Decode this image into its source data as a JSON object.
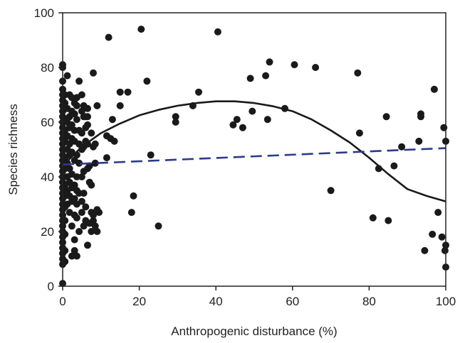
{
  "chart_data": {
    "type": "scatter",
    "title": "",
    "xlabel": "Anthropogenic disturbance (%)",
    "ylabel": "Species richness",
    "xlim": [
      0,
      100
    ],
    "ylim": [
      0,
      100
    ],
    "xticks": [
      0,
      20,
      40,
      60,
      80,
      100
    ],
    "yticks": [
      0,
      20,
      40,
      60,
      80,
      100
    ],
    "grid": false,
    "point_color": "#1a1a1a",
    "points": [
      [
        0,
        1
      ],
      [
        0,
        8
      ],
      [
        0,
        10
      ],
      [
        0,
        12
      ],
      [
        0,
        14
      ],
      [
        0,
        16
      ],
      [
        0,
        18
      ],
      [
        0,
        20
      ],
      [
        0,
        22
      ],
      [
        0,
        24
      ],
      [
        0,
        26
      ],
      [
        0,
        28
      ],
      [
        0,
        30
      ],
      [
        0,
        32
      ],
      [
        0,
        34
      ],
      [
        0,
        36
      ],
      [
        0,
        38
      ],
      [
        0,
        40
      ],
      [
        0,
        42
      ],
      [
        0,
        44
      ],
      [
        0,
        46
      ],
      [
        0,
        48
      ],
      [
        0,
        50
      ],
      [
        0,
        52
      ],
      [
        0,
        54
      ],
      [
        0,
        56
      ],
      [
        0,
        58
      ],
      [
        0,
        60
      ],
      [
        0,
        62
      ],
      [
        0,
        64
      ],
      [
        0,
        66
      ],
      [
        0,
        68
      ],
      [
        0,
        70
      ],
      [
        0,
        72
      ],
      [
        0,
        75
      ],
      [
        0,
        80
      ],
      [
        0,
        81
      ],
      [
        0.6,
        9
      ],
      [
        0.6,
        13
      ],
      [
        0.6,
        19
      ],
      [
        0.6,
        24
      ],
      [
        0.6,
        29
      ],
      [
        0.6,
        33
      ],
      [
        0.6,
        37
      ],
      [
        0.6,
        43
      ],
      [
        0.6,
        47
      ],
      [
        0.6,
        53
      ],
      [
        0.6,
        57
      ],
      [
        0.6,
        61
      ],
      [
        0.6,
        67
      ],
      [
        0.6,
        70
      ],
      [
        1.2,
        30
      ],
      [
        1.2,
        35
      ],
      [
        1.2,
        40
      ],
      [
        1.2,
        45
      ],
      [
        1.2,
        50
      ],
      [
        1.2,
        55
      ],
      [
        1.2,
        60
      ],
      [
        1.2,
        65
      ],
      [
        1.2,
        77
      ],
      [
        1.8,
        27
      ],
      [
        1.8,
        33
      ],
      [
        1.8,
        38
      ],
      [
        1.8,
        43
      ],
      [
        1.8,
        48
      ],
      [
        1.8,
        52
      ],
      [
        1.8,
        58
      ],
      [
        1.8,
        62
      ],
      [
        1.8,
        70
      ],
      [
        2.4,
        11
      ],
      [
        2.4,
        22
      ],
      [
        2.4,
        31
      ],
      [
        2.4,
        36
      ],
      [
        2.4,
        41
      ],
      [
        2.4,
        49
      ],
      [
        2.4,
        54
      ],
      [
        2.4,
        59
      ],
      [
        2.4,
        64
      ],
      [
        2.4,
        69
      ],
      [
        3.1,
        13
      ],
      [
        3.1,
        17
      ],
      [
        3.1,
        26
      ],
      [
        3.1,
        32
      ],
      [
        3.1,
        37
      ],
      [
        3.1,
        46
      ],
      [
        3.1,
        53
      ],
      [
        3.1,
        57
      ],
      [
        3.1,
        63
      ],
      [
        3.1,
        67
      ],
      [
        3.7,
        11
      ],
      [
        3.7,
        25
      ],
      [
        3.7,
        30
      ],
      [
        3.7,
        35
      ],
      [
        3.7,
        40
      ],
      [
        3.7,
        48
      ],
      [
        3.7,
        61
      ],
      [
        3.7,
        66
      ],
      [
        3.7,
        69
      ],
      [
        4.3,
        20
      ],
      [
        4.3,
        34
      ],
      [
        4.3,
        45
      ],
      [
        4.3,
        52
      ],
      [
        4.3,
        57
      ],
      [
        4.3,
        75
      ],
      [
        5,
        27
      ],
      [
        5,
        31
      ],
      [
        5,
        40
      ],
      [
        5,
        50
      ],
      [
        5,
        56
      ],
      [
        5,
        64
      ],
      [
        5,
        70
      ],
      [
        5.5,
        22
      ],
      [
        5.5,
        34
      ],
      [
        5.5,
        42
      ],
      [
        5.5,
        51
      ],
      [
        5.5,
        62
      ],
      [
        5.5,
        66
      ],
      [
        6,
        24
      ],
      [
        6,
        29
      ],
      [
        6,
        53
      ],
      [
        6,
        58
      ],
      [
        6,
        62
      ],
      [
        6.5,
        15
      ],
      [
        6.5,
        43
      ],
      [
        6.5,
        52
      ],
      [
        6.5,
        59
      ],
      [
        6.5,
        62
      ],
      [
        6.5,
        65
      ],
      [
        7,
        23
      ],
      [
        7,
        38
      ],
      [
        7,
        44
      ],
      [
        7.5,
        20
      ],
      [
        7.5,
        27
      ],
      [
        7.5,
        37
      ],
      [
        7.5,
        56
      ],
      [
        8,
        24
      ],
      [
        8,
        26
      ],
      [
        8,
        51
      ],
      [
        8,
        78
      ],
      [
        8.5,
        22
      ],
      [
        8.5,
        45
      ],
      [
        8.5,
        52
      ],
      [
        9,
        20
      ],
      [
        9,
        28
      ],
      [
        9,
        66
      ],
      [
        9.5,
        27
      ],
      [
        11.5,
        47
      ],
      [
        11.5,
        55
      ],
      [
        12,
        91
      ],
      [
        12.5,
        54
      ],
      [
        13,
        61
      ],
      [
        13.5,
        53
      ],
      [
        15,
        66
      ],
      [
        15,
        71
      ],
      [
        17,
        71
      ],
      [
        18,
        27
      ],
      [
        18.5,
        33
      ],
      [
        20.5,
        94
      ],
      [
        22,
        75
      ],
      [
        23,
        48
      ],
      [
        25,
        22
      ],
      [
        29.5,
        62
      ],
      [
        29.5,
        60
      ],
      [
        34,
        66
      ],
      [
        35.5,
        71
      ],
      [
        40.5,
        93
      ],
      [
        44.5,
        59
      ],
      [
        45.5,
        61
      ],
      [
        47,
        58
      ],
      [
        49,
        76
      ],
      [
        49.5,
        64
      ],
      [
        53,
        77
      ],
      [
        53.5,
        61
      ],
      [
        54,
        82
      ],
      [
        58,
        65
      ],
      [
        60.5,
        81
      ],
      [
        66,
        80
      ],
      [
        70,
        35
      ],
      [
        77,
        78
      ],
      [
        77.5,
        56
      ],
      [
        81,
        25
      ],
      [
        82.5,
        43
      ],
      [
        84.5,
        62
      ],
      [
        85,
        24
      ],
      [
        86.5,
        44
      ],
      [
        88.5,
        51
      ],
      [
        93,
        53
      ],
      [
        93.5,
        63
      ],
      [
        93.5,
        62
      ],
      [
        94.5,
        13
      ],
      [
        96.5,
        19
      ],
      [
        97,
        72
      ],
      [
        98,
        27
      ],
      [
        99,
        18
      ],
      [
        99.5,
        58
      ],
      [
        99.8,
        13
      ],
      [
        100,
        15
      ],
      [
        100,
        7
      ],
      [
        100,
        53
      ]
    ],
    "curves": [
      {
        "kind": "quadratic-fit",
        "color": "#1a1a1a",
        "dash": "solid",
        "points": [
          [
            0,
            44
          ],
          [
            5,
            51
          ],
          [
            10,
            56
          ],
          [
            15,
            59.5
          ],
          [
            20,
            62.5
          ],
          [
            25,
            64.5
          ],
          [
            30,
            66
          ],
          [
            35,
            67
          ],
          [
            40,
            67.6
          ],
          [
            45,
            67.6
          ],
          [
            50,
            67
          ],
          [
            55,
            65.8
          ],
          [
            60,
            64
          ],
          [
            65,
            61
          ],
          [
            70,
            57
          ],
          [
            75,
            52.5
          ],
          [
            80,
            47
          ],
          [
            85,
            41
          ],
          [
            90,
            35.5
          ],
          [
            95,
            33
          ],
          [
            100,
            31
          ]
        ]
      },
      {
        "kind": "linear-fit",
        "color": "#2d3a8c",
        "dash": "dashed",
        "points": [
          [
            0,
            44.5
          ],
          [
            100,
            50.5
          ]
        ]
      }
    ]
  }
}
